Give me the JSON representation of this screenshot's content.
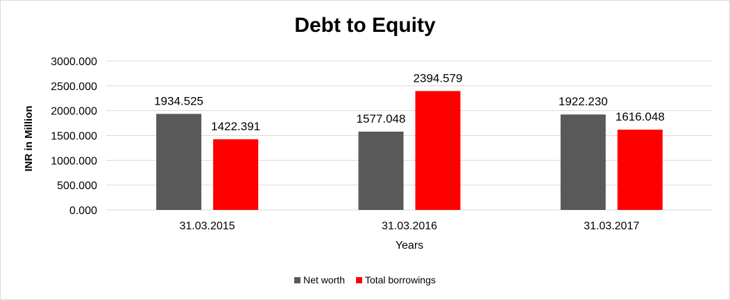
{
  "chart_data": {
    "type": "bar",
    "title": "Debt to Equity",
    "xlabel": "Years",
    "ylabel": "INR in Million",
    "categories": [
      "31.03.2015",
      "31.03.2016",
      "31.03.2017"
    ],
    "series": [
      {
        "name": "Net worth",
        "color": "#595959",
        "values": [
          1934.525,
          1577.048,
          1922.23
        ],
        "labels": [
          "1934.525",
          "1577.048",
          "1922.230"
        ]
      },
      {
        "name": "Total borrowings",
        "color": "#ff0000",
        "values": [
          1422.391,
          2394.579,
          1616.048
        ],
        "labels": [
          "1422.391",
          "2394.579",
          "1616.048"
        ]
      }
    ],
    "ylim": [
      0,
      3000
    ],
    "yticks": [
      "0.000",
      "500.000",
      "1000.000",
      "1500.000",
      "2000.000",
      "2500.000",
      "3000.000"
    ],
    "grid": true,
    "legend": "bottom"
  }
}
